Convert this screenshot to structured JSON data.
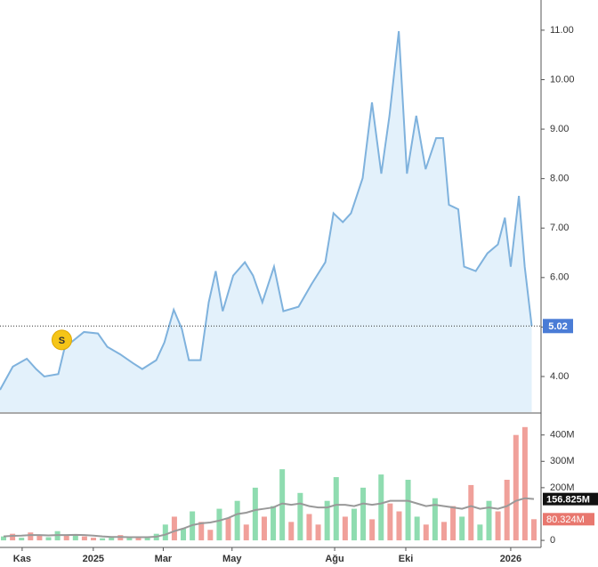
{
  "chart_data": [
    {
      "type": "area",
      "color": "#7fb2dd",
      "fill": "#e3f1fb",
      "x": [
        0,
        11,
        23,
        31,
        38,
        50,
        55,
        61,
        72,
        84,
        92,
        103,
        114,
        122,
        134,
        141,
        149,
        156,
        162,
        172,
        179,
        185,
        191,
        200,
        210,
        217,
        225,
        235,
        243,
        256,
        267,
        279,
        286,
        294,
        301,
        311,
        319,
        327,
        334,
        342,
        349,
        357,
        365,
        374,
        380,
        385,
        393,
        398,
        408,
        418,
        427,
        433,
        438,
        445,
        450,
        456
      ],
      "values": [
        3.73,
        4.2,
        4.36,
        4.15,
        4.0,
        4.05,
        4.54,
        4.69,
        4.9,
        4.87,
        4.6,
        4.45,
        4.27,
        4.15,
        4.33,
        4.69,
        5.35,
        4.96,
        4.33,
        4.33,
        5.5,
        6.13,
        5.32,
        6.04,
        6.31,
        6.04,
        5.5,
        6.22,
        5.32,
        5.41,
        5.86,
        6.31,
        7.3,
        7.12,
        7.3,
        8.01,
        9.54,
        8.1,
        9.27,
        10.98,
        8.1,
        9.27,
        8.19,
        8.82,
        8.82,
        7.47,
        7.38,
        6.22,
        6.13,
        6.49,
        6.67,
        7.21,
        6.22,
        7.65,
        6.22,
        5.02
      ],
      "xlim": [
        0,
        464
      ],
      "xticks": [
        {
          "value": 19,
          "label": "Kas"
        },
        {
          "value": 80,
          "label": "2025"
        },
        {
          "value": 140,
          "label": "Mar"
        },
        {
          "value": 199,
          "label": "May"
        },
        {
          "value": 287,
          "label": "Ağu"
        },
        {
          "value": 348,
          "label": "Eki"
        },
        {
          "value": 438,
          "label": "2026"
        }
      ],
      "ylim": [
        3.28,
        11.61
      ],
      "yticks": [
        {
          "value": 4,
          "label": "4.00"
        },
        {
          "value": 5,
          "label": "5.00"
        },
        {
          "value": 6,
          "label": "6.00"
        },
        {
          "value": 7,
          "label": "7.00"
        },
        {
          "value": 8,
          "label": "8.00"
        },
        {
          "value": 9,
          "label": "9.00"
        },
        {
          "value": 10,
          "label": "10.00"
        },
        {
          "value": 11,
          "label": "11.00"
        }
      ],
      "current_price": 5.02,
      "current_price_color": "#4a7cd6",
      "annotations": [
        {
          "text": "S",
          "x": 53,
          "y": 4.74
        }
      ]
    },
    {
      "type": "bar",
      "values": [
        15,
        25,
        10,
        30,
        20,
        12,
        35,
        18,
        22,
        15,
        10,
        8,
        14,
        20,
        12,
        9,
        15,
        25,
        60,
        90,
        45,
        110,
        70,
        40,
        120,
        85,
        150,
        60,
        200,
        90,
        130,
        270,
        70,
        180,
        100,
        60,
        150,
        240,
        90,
        120,
        200,
        80,
        250,
        140,
        110,
        230,
        90,
        60,
        160,
        70,
        130,
        90,
        210,
        60,
        150,
        110,
        230,
        400,
        430,
        80.324
      ],
      "value_labels": {
        "59": "80.324M"
      },
      "colors": [
        "#8fdcb0",
        "#f0a09a",
        "#8fdcb0",
        "#f0a09a",
        "#f0a09a",
        "#8fdcb0",
        "#8fdcb0",
        "#f0a09a",
        "#8fdcb0",
        "#f0a09a",
        "#f0a09a",
        "#8fdcb0",
        "#8fdcb0",
        "#f0a09a",
        "#8fdcb0",
        "#f0a09a",
        "#8fdcb0",
        "#8fdcb0",
        "#8fdcb0",
        "#f0a09a",
        "#8fdcb0",
        "#8fdcb0",
        "#f0a09a",
        "#f0a09a",
        "#8fdcb0",
        "#f0a09a",
        "#8fdcb0",
        "#f0a09a",
        "#8fdcb0",
        "#f0a09a",
        "#8fdcb0",
        "#8fdcb0",
        "#f0a09a",
        "#8fdcb0",
        "#f0a09a",
        "#f0a09a",
        "#8fdcb0",
        "#8fdcb0",
        "#f0a09a",
        "#8fdcb0",
        "#8fdcb0",
        "#f0a09a",
        "#8fdcb0",
        "#f0a09a",
        "#f0a09a",
        "#8fdcb0",
        "#8fdcb0",
        "#f0a09a",
        "#8fdcb0",
        "#f0a09a",
        "#f0a09a",
        "#8fdcb0",
        "#f0a09a",
        "#8fdcb0",
        "#8fdcb0",
        "#f0a09a",
        "#f0a09a",
        "#f0a09a",
        "#f0a09a",
        "#f0a09a"
      ],
      "ma": {
        "color": "#999999",
        "values": [
          15,
          17,
          18,
          20,
          20,
          19,
          20,
          20,
          21,
          20,
          18,
          15,
          13,
          13,
          12,
          12,
          12,
          14,
          22,
          35,
          45,
          58,
          65,
          68,
          75,
          85,
          100,
          105,
          115,
          120,
          125,
          140,
          135,
          140,
          130,
          125,
          125,
          135,
          135,
          130,
          140,
          135,
          140,
          150,
          150,
          150,
          140,
          130,
          135,
          130,
          125,
          120,
          130,
          120,
          125,
          120,
          130,
          150,
          160,
          156.825
        ],
        "last_label": "156.825M"
      },
      "ylim": [
        -20,
        480
      ],
      "yticks": [
        {
          "value": 0,
          "label": "0"
        },
        {
          "value": 200,
          "label": "200M"
        },
        {
          "value": 300,
          "label": "300M"
        },
        {
          "value": 400,
          "label": "400M"
        }
      ]
    }
  ]
}
